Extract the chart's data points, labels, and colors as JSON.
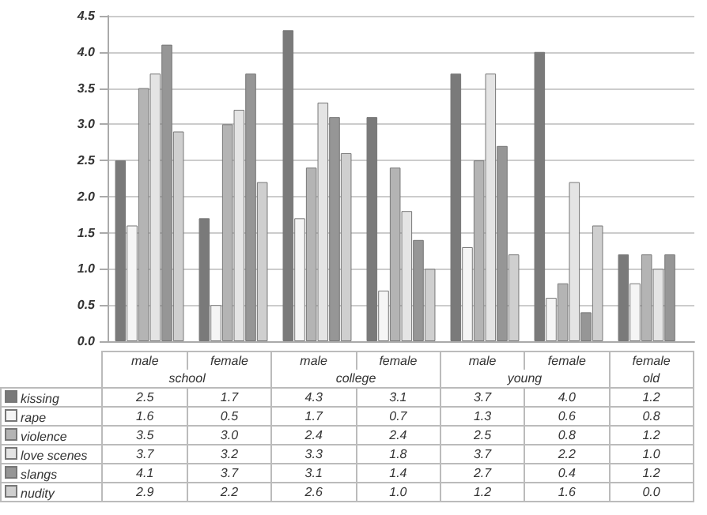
{
  "chart_data": {
    "type": "bar",
    "categories": [
      "male",
      "female",
      "male",
      "female",
      "male",
      "female",
      "female"
    ],
    "annotations": [
      "school",
      "college",
      "young",
      "old"
    ],
    "series": [
      {
        "name": "kissing",
        "color": "#7a7a7a",
        "values": [
          2.5,
          1.7,
          4.3,
          3.1,
          3.7,
          4.0,
          1.2
        ],
        "value_labels": [
          "2.5",
          "1.7",
          "4.3",
          "3.1",
          "3.7",
          "4.0",
          "1.2"
        ]
      },
      {
        "name": "rape",
        "color": "#f5f5f5",
        "values": [
          1.6,
          0.5,
          1.7,
          0.7,
          1.3,
          0.6,
          0.8
        ],
        "value_labels": [
          "1.6",
          "0.5",
          "1.7",
          "0.7",
          "1.3",
          "0.6",
          "0.8"
        ]
      },
      {
        "name": "violence",
        "color": "#b4b4b4",
        "values": [
          3.5,
          3.0,
          2.4,
          2.4,
          2.5,
          0.8,
          1.2
        ],
        "value_labels": [
          "3.5",
          "3.0",
          "2.4",
          "2.4",
          "2.5",
          "0.8",
          "1.2"
        ]
      },
      {
        "name": "love scenes",
        "color": "#e4e4e4",
        "values": [
          3.7,
          3.2,
          3.3,
          1.8,
          3.7,
          2.2,
          1.0
        ],
        "value_labels": [
          "3.7",
          "3.2",
          "3.3",
          "1.8",
          "3.7",
          "2.2",
          "1.0"
        ]
      },
      {
        "name": "slangs",
        "color": "#969696",
        "values": [
          4.1,
          3.7,
          3.1,
          1.4,
          2.7,
          0.4,
          1.2
        ],
        "value_labels": [
          "4.1",
          "3.7",
          "3.1",
          "1.4",
          "2.7",
          "0.4",
          "1.2"
        ]
      },
      {
        "name": "nudity",
        "color": "#cfcfcf",
        "values": [
          2.9,
          2.2,
          2.6,
          1.0,
          1.2,
          1.6,
          0.0
        ],
        "value_labels": [
          "2.9",
          "2.2",
          "2.6",
          "1.0",
          "1.2",
          "1.6",
          "0.0"
        ]
      }
    ],
    "ylim": [
      0,
      4.5
    ],
    "yticks": [
      {
        "value": 0,
        "label": "0.0"
      },
      {
        "value": 0.5,
        "label": "0.5"
      },
      {
        "value": 1,
        "label": "1.0"
      },
      {
        "value": 1.5,
        "label": "1.5"
      },
      {
        "value": 2,
        "label": "2.0"
      },
      {
        "value": 2.5,
        "label": "2.5"
      },
      {
        "value": 3,
        "label": "3.0"
      },
      {
        "value": 3.5,
        "label": "3.5"
      },
      {
        "value": 4,
        "label": "4.0"
      },
      {
        "value": 4.5,
        "label": "4.5"
      }
    ],
    "grid": "y",
    "legend": "bottom left"
  }
}
